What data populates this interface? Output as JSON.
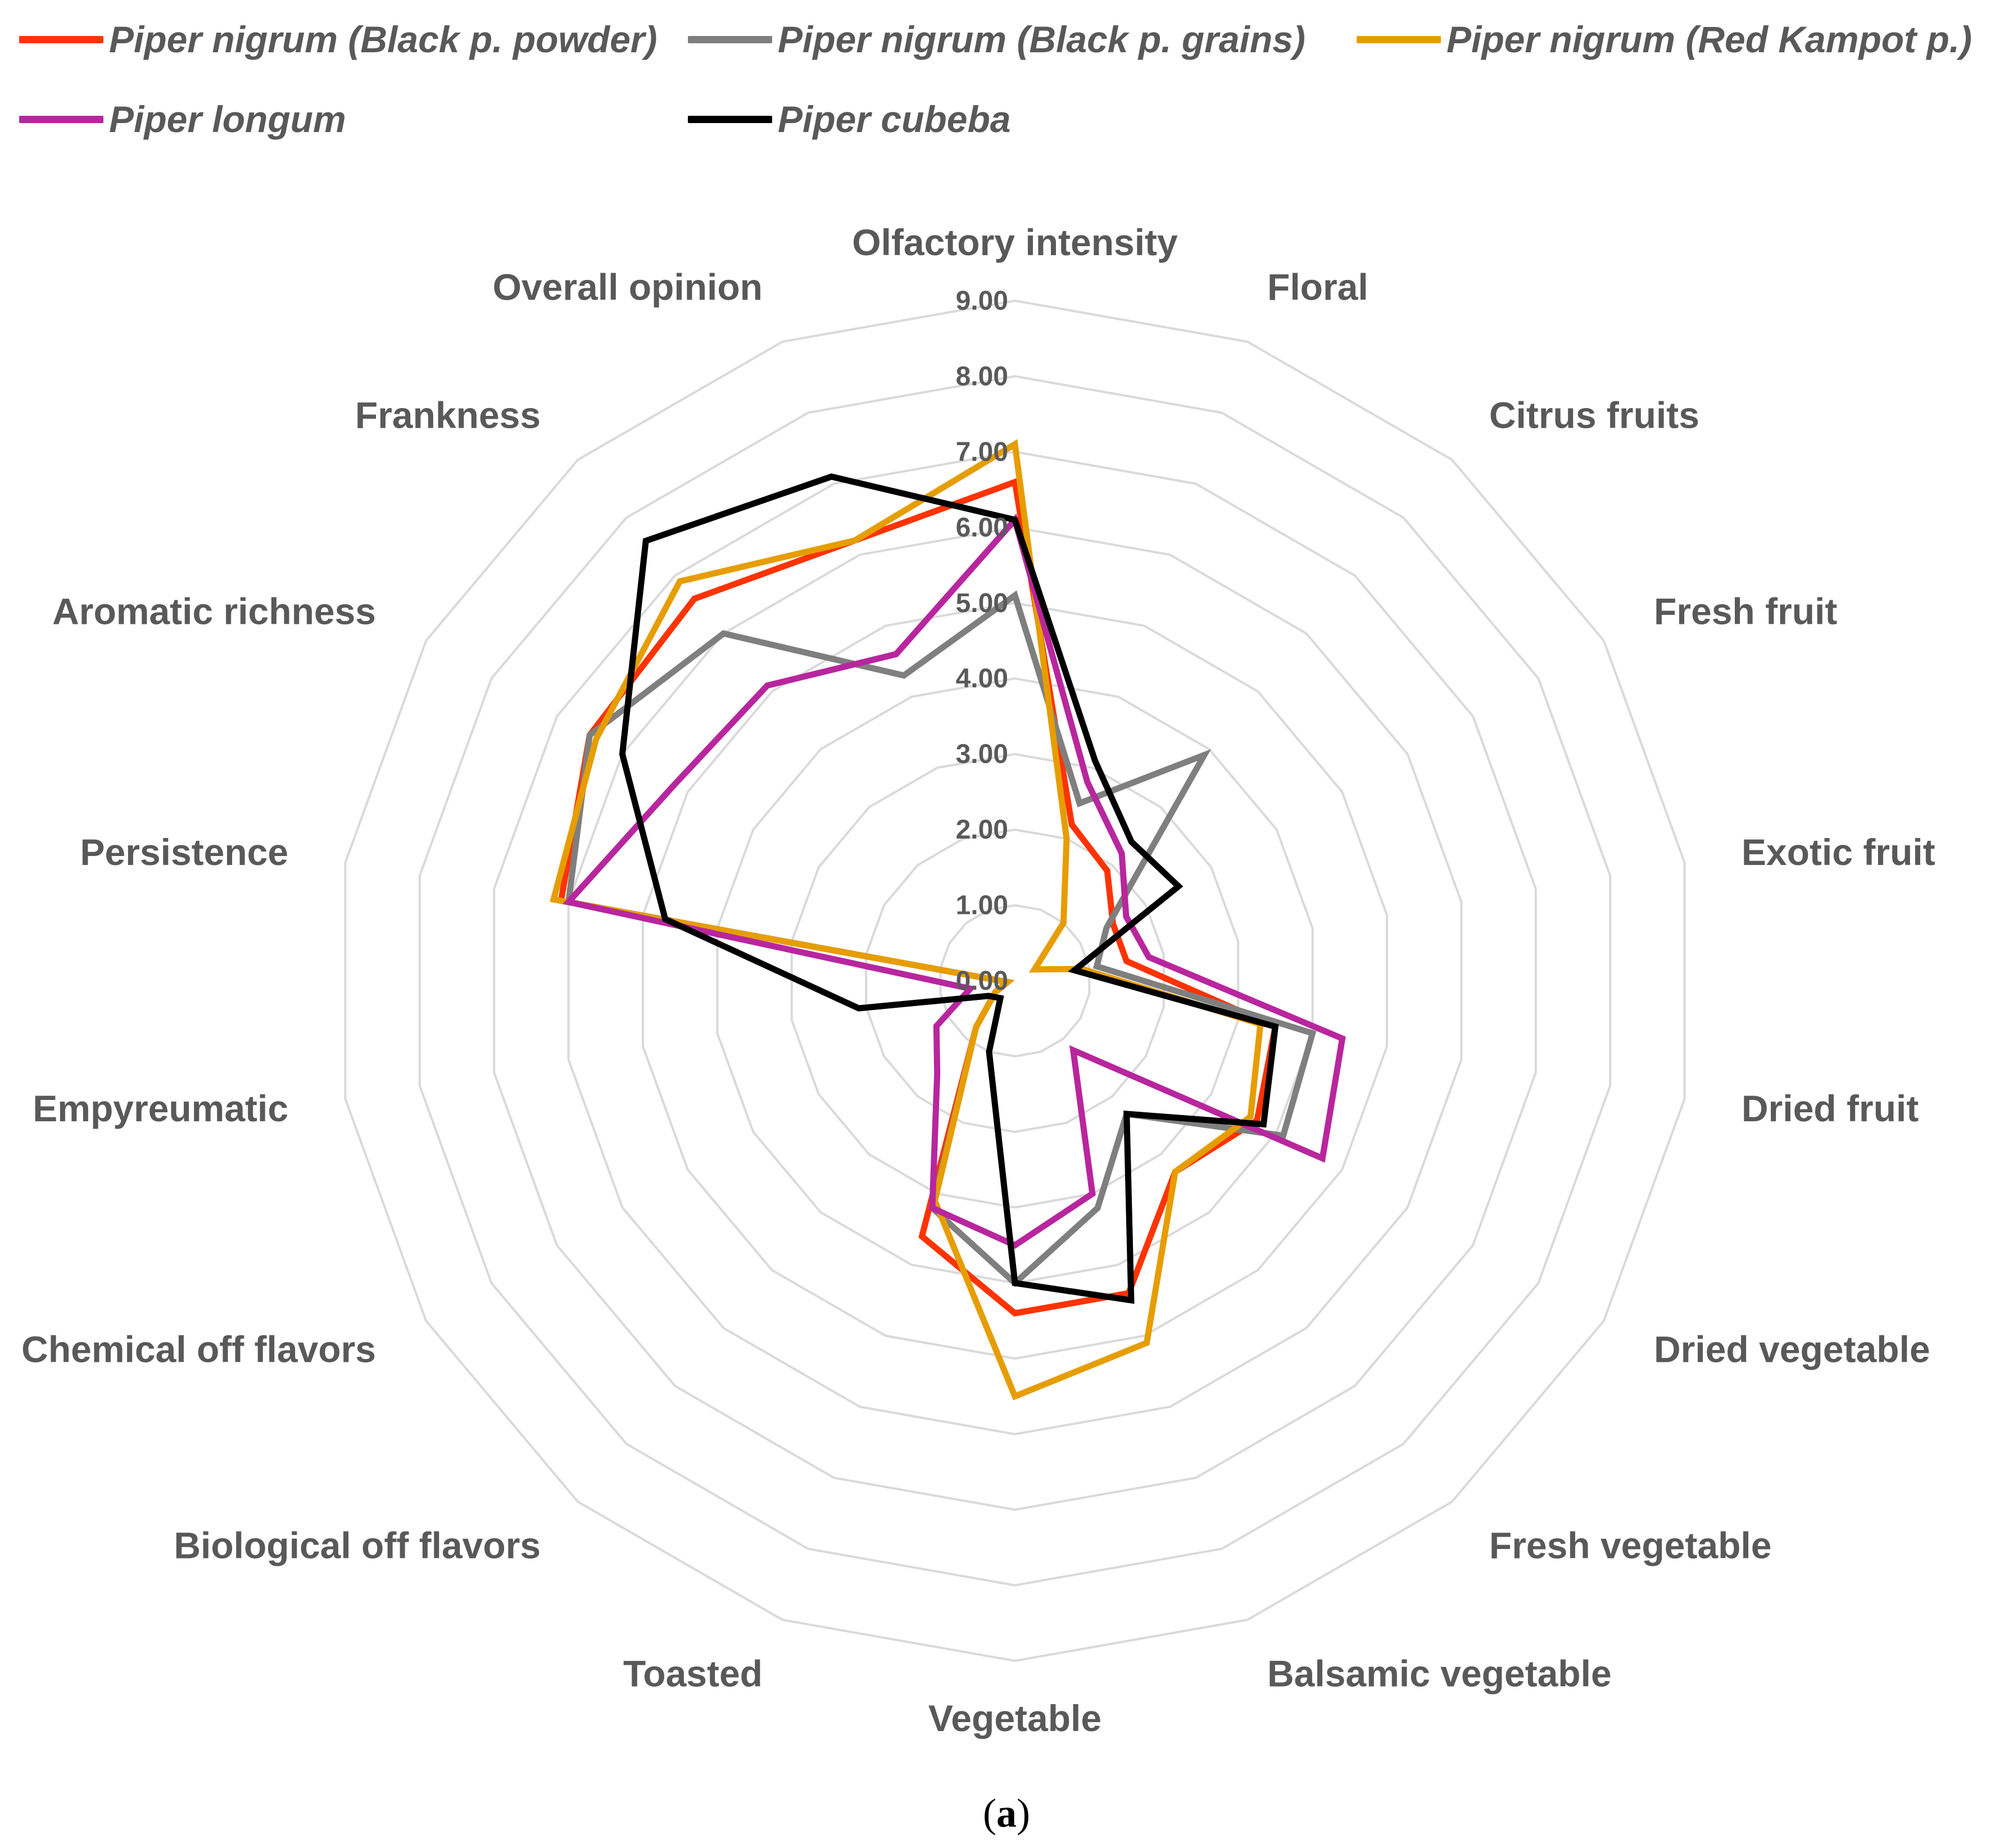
{
  "chart_data": {
    "type": "radar",
    "axes": [
      "Olfactory intensity",
      "Floral",
      "Citrus fruits",
      "Fresh fruit",
      "Exotic fruit",
      "Dried fruit",
      "Dried vegetable",
      "Fresh vegetable",
      "Balsamic vegetable",
      "Vegetable",
      "Toasted",
      "Biological off flavors",
      "Chemical off flavors",
      "Empyreumatic",
      "Persistence",
      "Aromatic richness",
      "Frankness",
      "Overall opinion"
    ],
    "ticks": [
      "0.00",
      "1.00",
      "2.00",
      "3.00",
      "4.00",
      "5.00",
      "6.00",
      "7.00",
      "8.00",
      "9.00"
    ],
    "rlim": [
      0,
      9
    ],
    "grid": true,
    "legend_position": "top",
    "series": [
      {
        "name": "Piper nigrum (Black p. powder)",
        "color": "#ff3300",
        "values": [
          6.6,
          2.2,
          1.9,
          1.5,
          1.5,
          3.5,
          3.7,
          3.3,
          4.4,
          4.4,
          3.6,
          0.8,
          0.3,
          0.1,
          6.1,
          6.5,
          6.6,
          6.2
        ]
      },
      {
        "name": "Piper nigrum (Black p. grains)",
        "color": "#7f7f7f",
        "values": [
          5.1,
          2.5,
          3.9,
          1.4,
          1.1,
          4.0,
          4.1,
          2.3,
          3.2,
          4.0,
          3.2,
          0.8,
          0.3,
          0.1,
          6.0,
          6.5,
          6.0,
          4.3
        ]
      },
      {
        "name": "Piper nigrum  (Red Kampot p.)",
        "color": "#e69d00",
        "values": [
          7.1,
          2.0,
          1.0,
          0.3,
          0.9,
          3.3,
          3.6,
          3.3,
          5.1,
          5.5,
          3.1,
          0.8,
          0.3,
          0.1,
          6.2,
          6.4,
          6.9,
          6.2
        ]
      },
      {
        "name": "Piper longum",
        "color": "#b8269e",
        "values": [
          6.1,
          2.8,
          2.2,
          1.7,
          1.8,
          4.4,
          4.7,
          1.2,
          3.0,
          3.5,
          3.2,
          1.6,
          1.2,
          0.6,
          6.0,
          5.2,
          5.1,
          4.6
        ]
      },
      {
        "name": "Piper cubeba",
        "color": "#000000",
        "values": [
          6.1,
          3.1,
          2.4,
          2.5,
          0.8,
          3.5,
          3.8,
          2.3,
          4.5,
          4.0,
          1.0,
          0.3,
          0.4,
          2.1,
          4.7,
          6.0,
          7.6,
          7.1
        ]
      }
    ]
  },
  "caption": {
    "open": "(",
    "letter": "a",
    "close": ")"
  }
}
